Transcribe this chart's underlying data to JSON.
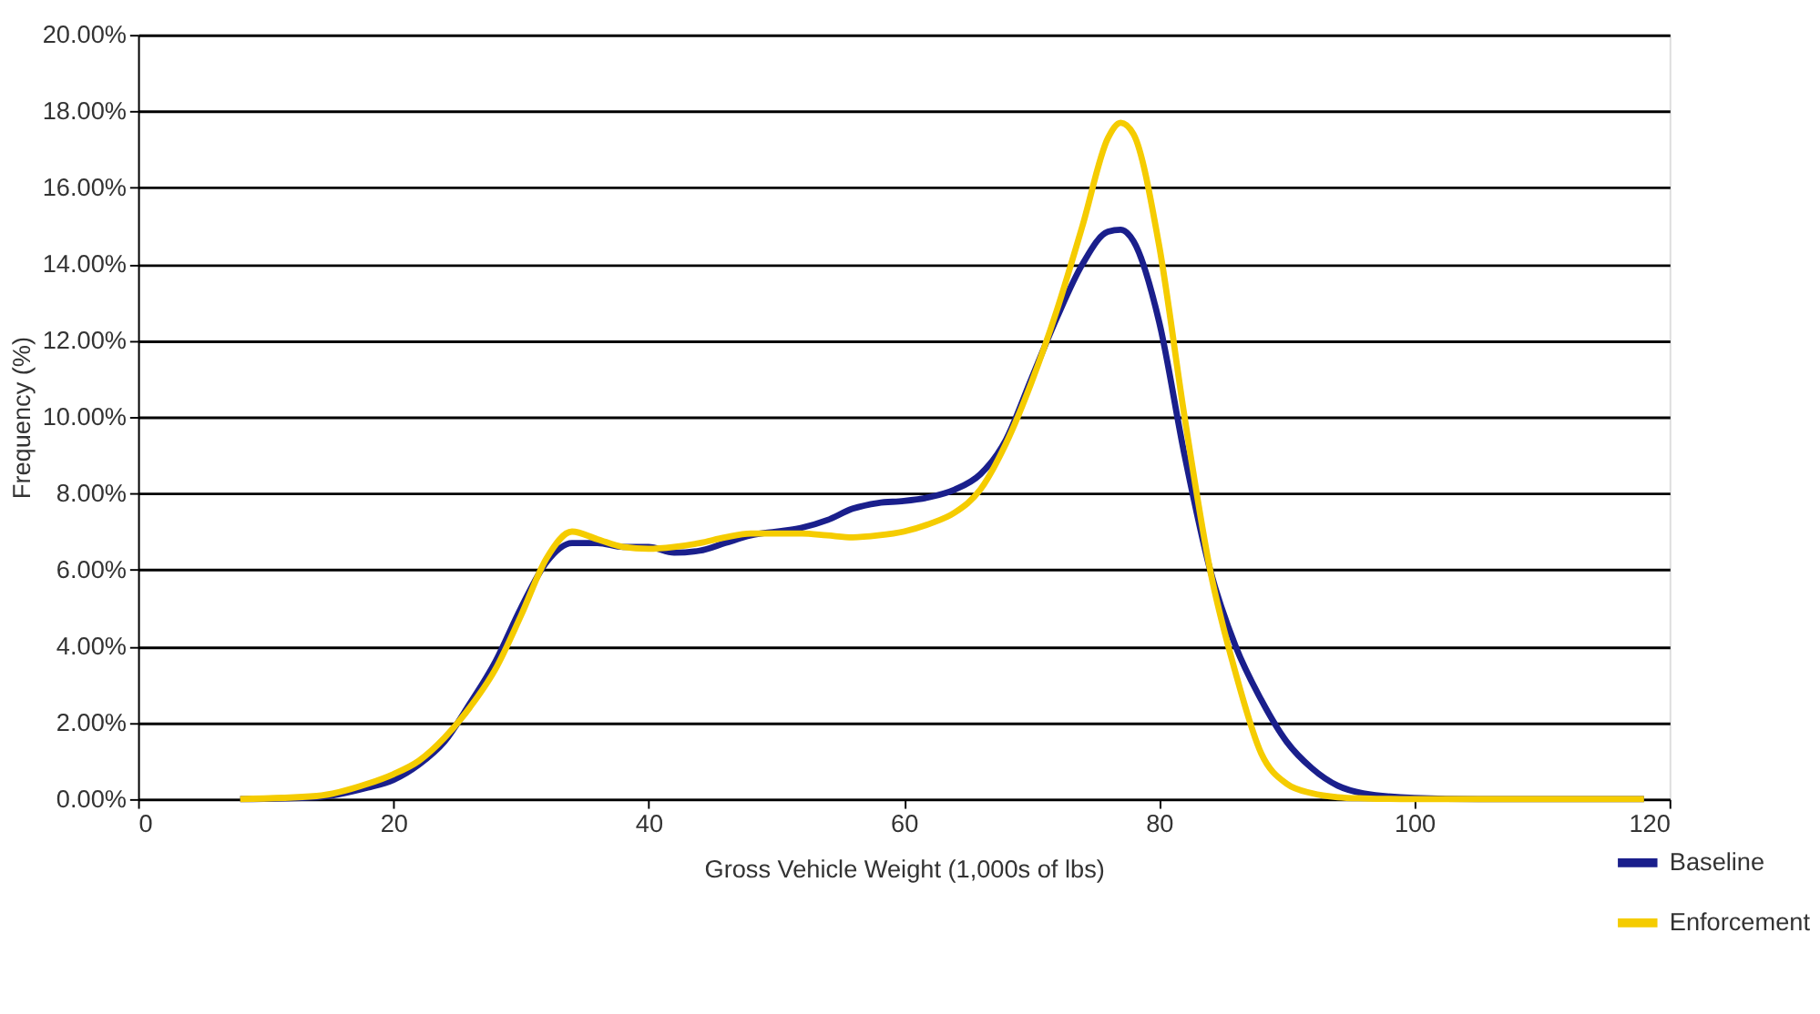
{
  "chart_data": {
    "type": "line",
    "xlabel": "Gross Vehicle Weight (1,000s of lbs)",
    "ylabel": "Frequency (%)",
    "xlim": [
      0,
      120
    ],
    "xticks": [
      0,
      20,
      40,
      60,
      80,
      100,
      120
    ],
    "ylim": [
      0,
      20
    ],
    "yticks": [
      {
        "value": 0,
        "label": "0.00%"
      },
      {
        "value": 2,
        "label": "2.00%"
      },
      {
        "value": 4,
        "label": "4.00%"
      },
      {
        "value": 6,
        "label": "6.00%"
      },
      {
        "value": 8,
        "label": "8.00%"
      },
      {
        "value": 10,
        "label": "10.00%"
      },
      {
        "value": 12,
        "label": "12.00%"
      },
      {
        "value": 14,
        "label": "14.00%"
      },
      {
        "value": 16,
        "label": "16.00%"
      },
      {
        "value": 18,
        "label": "18.00%"
      },
      {
        "value": 20,
        "label": "20.00%"
      }
    ],
    "grid": "y",
    "legend": "bottom right",
    "marker": "none",
    "line_style": "solid",
    "series": [
      {
        "name": "Baseline",
        "color": "#1a1f8c",
        "x": [
          8,
          14,
          18,
          20,
          22,
          24,
          26,
          28,
          30,
          32,
          34,
          36,
          38,
          40,
          42,
          44,
          46,
          48,
          50,
          52,
          54,
          56,
          58,
          60,
          62,
          64,
          66,
          68,
          70,
          72,
          74,
          76,
          77,
          78,
          80,
          82,
          84,
          86,
          88,
          90,
          92,
          94,
          96,
          100,
          105,
          118
        ],
        "values": [
          0,
          0.05,
          0.3,
          0.5,
          0.9,
          1.5,
          2.5,
          3.6,
          5.0,
          6.2,
          6.7,
          6.7,
          6.6,
          6.6,
          6.45,
          6.5,
          6.7,
          6.9,
          7.0,
          7.1,
          7.3,
          7.6,
          7.75,
          7.8,
          7.9,
          8.1,
          8.5,
          9.4,
          11.0,
          12.6,
          14.0,
          14.85,
          14.9,
          14.6,
          12.5,
          9.0,
          6.0,
          4.0,
          2.6,
          1.5,
          0.8,
          0.35,
          0.15,
          0.03,
          0,
          0
        ]
      },
      {
        "name": "Enforcement",
        "color": "#f5cc00",
        "x": [
          8,
          14,
          18,
          20,
          22,
          24,
          26,
          28,
          30,
          32,
          34,
          36,
          38,
          40,
          42,
          44,
          46,
          48,
          50,
          52,
          54,
          56,
          58,
          60,
          62,
          64,
          66,
          68,
          70,
          72,
          74,
          76,
          77,
          78,
          80,
          82,
          84,
          86,
          88,
          90,
          92,
          94,
          96,
          100,
          118
        ],
        "values": [
          0,
          0.08,
          0.4,
          0.65,
          1.0,
          1.6,
          2.4,
          3.4,
          4.8,
          6.3,
          7.0,
          6.8,
          6.6,
          6.55,
          6.6,
          6.7,
          6.85,
          6.95,
          6.95,
          6.95,
          6.9,
          6.85,
          6.9,
          7.0,
          7.2,
          7.5,
          8.1,
          9.3,
          10.9,
          12.8,
          15.0,
          17.3,
          17.7,
          17.4,
          14.5,
          10.0,
          6.0,
          3.3,
          1.2,
          0.4,
          0.15,
          0.05,
          0.02,
          0,
          0
        ]
      }
    ]
  }
}
